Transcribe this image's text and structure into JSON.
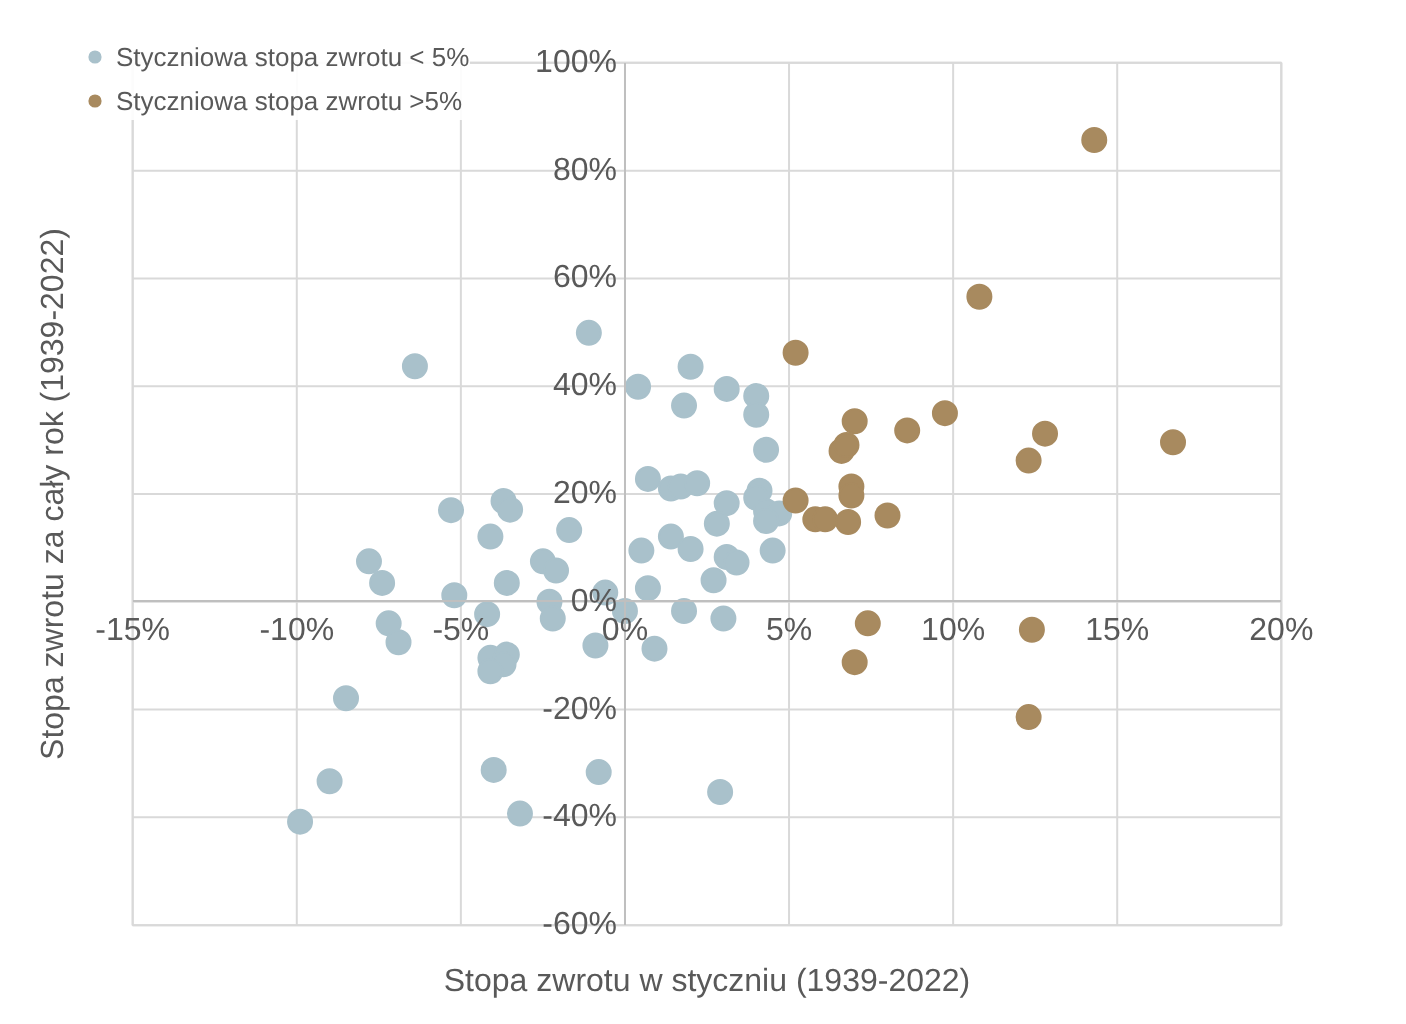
{
  "chart_data": {
    "type": "scatter",
    "xlabel": "Stopa zwrotu w styczniu (1939-2022)",
    "ylabel": "Stopa zwrotu za cały rok (1939-2022)",
    "xlim": [
      -15,
      20
    ],
    "ylim": [
      -60,
      100
    ],
    "xticks": [
      {
        "value": -15,
        "label": "-15%"
      },
      {
        "value": -10,
        "label": "-10%"
      },
      {
        "value": -5,
        "label": "-5%"
      },
      {
        "value": 0,
        "label": "0%"
      },
      {
        "value": 5,
        "label": "5%"
      },
      {
        "value": 10,
        "label": "10%"
      },
      {
        "value": 15,
        "label": "15%"
      },
      {
        "value": 20,
        "label": "20%"
      }
    ],
    "yticks": [
      {
        "value": -60,
        "label": "-60%"
      },
      {
        "value": -40,
        "label": "-40%"
      },
      {
        "value": -20,
        "label": "-20%"
      },
      {
        "value": 0,
        "label": "0%"
      },
      {
        "value": 20,
        "label": "20%"
      },
      {
        "value": 40,
        "label": "40%"
      },
      {
        "value": 60,
        "label": "60%"
      },
      {
        "value": 80,
        "label": "80%"
      },
      {
        "value": 100,
        "label": "100%"
      }
    ],
    "grid": true,
    "legend": "top left",
    "marker": "circle",
    "series": [
      {
        "name": "Styczniowa stopa zwrotu < 5%",
        "color": "#a9c1cb",
        "x": [
          -1.1,
          -6.4,
          2.0,
          0.4,
          3.1,
          4.0,
          1.8,
          4.0,
          4.3,
          0.7,
          1.4,
          1.7,
          2.2,
          3.1,
          4.1,
          4.0,
          4.3,
          4.7,
          4.3,
          -5.3,
          -3.7,
          -3.5,
          -1.7,
          -4.1,
          2.8,
          1.4,
          0.5,
          2.0,
          4.5,
          -7.8,
          -2.5,
          -2.1,
          3.1,
          3.4,
          -7.4,
          -3.6,
          2.7,
          0.7,
          -0.6,
          -5.2,
          -2.3,
          -7.2,
          -4.2,
          -2.2,
          0.0,
          1.8,
          3.0,
          -6.9,
          -0.9,
          0.9,
          -4.1,
          -3.6,
          -3.7,
          -4.1,
          -8.5,
          -4.0,
          -0.8,
          -9.0,
          2.9,
          -9.9,
          -3.2
        ],
        "values": [
          49.9,
          43.7,
          43.6,
          39.9,
          39.5,
          38.2,
          36.4,
          34.7,
          28.2,
          22.8,
          21.0,
          21.4,
          22.0,
          18.3,
          20.6,
          19.3,
          16.8,
          16.4,
          15.0,
          17.0,
          18.7,
          17.1,
          13.3,
          12.1,
          14.5,
          12.1,
          9.5,
          9.8,
          9.5,
          7.5,
          7.5,
          5.8,
          8.3,
          7.3,
          3.5,
          3.5,
          4.0,
          2.5,
          1.7,
          1.2,
          0.0,
          -4.0,
          -2.3,
          -3.1,
          -1.7,
          -1.7,
          -3.1,
          -7.5,
          -8.1,
          -8.7,
          -10.4,
          -9.8,
          -11.6,
          -12.9,
          -17.9,
          -31.2,
          -31.6,
          -33.3,
          -35.3,
          -40.8,
          -39.3
        ]
      },
      {
        "name": "Styczniowa stopa zwrotu >5%",
        "color": "#a88a5f",
        "x": [
          14.3,
          16.7,
          10.8,
          5.2,
          7.0,
          8.6,
          9.75,
          12.8,
          12.3,
          6.6,
          6.75,
          5.2,
          6.9,
          6.9,
          5.8,
          6.1,
          6.8,
          8.0,
          7.4,
          12.4,
          7.0,
          12.3
        ],
        "values": [
          85.7,
          29.6,
          56.6,
          46.2,
          33.5,
          31.8,
          35.0,
          31.2,
          26.2,
          28.0,
          29.1,
          18.8,
          21.4,
          19.7,
          15.3,
          15.3,
          14.8,
          16.0,
          -4.0,
          -5.2,
          -11.2,
          -21.4
        ]
      }
    ]
  }
}
